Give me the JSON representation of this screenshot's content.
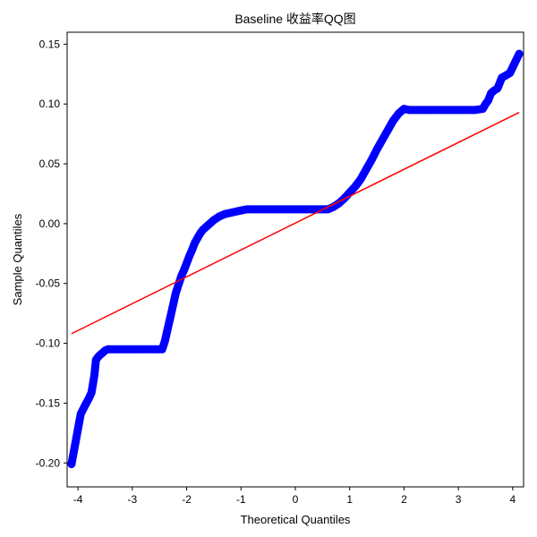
{
  "chart_data": {
    "type": "scatter",
    "title": "Baseline 收益率QQ图",
    "xlabel": "Theoretical Quantiles",
    "ylabel": "Sample Quantiles",
    "xlim": [
      -4.2,
      4.2
    ],
    "ylim": [
      -0.22,
      0.16
    ],
    "x_ticks": [
      -4,
      -3,
      -2,
      -1,
      0,
      1,
      2,
      3,
      4
    ],
    "x_tick_labels": [
      "-4",
      "-3",
      "-2",
      "-1",
      "0",
      "1",
      "2",
      "3",
      "4"
    ],
    "y_ticks": [
      -0.2,
      -0.15,
      -0.1,
      -0.05,
      0.0,
      0.05,
      0.1,
      0.15
    ],
    "y_tick_labels": [
      "-0.20",
      "-0.15",
      "-0.10",
      "-0.05",
      "0.00",
      "0.05",
      "0.10",
      "0.15"
    ],
    "grid": false,
    "legend": "none",
    "colors": {
      "points": "#0000ff",
      "reference_line": "#ff0000"
    },
    "series": [
      {
        "kind": "points",
        "x": [
          -4.12,
          -3.95,
          -3.87,
          -3.8,
          -3.75,
          -3.7,
          -3.67,
          -3.64,
          -3.6,
          -3.55,
          -3.5,
          -3.45,
          -3.4,
          -3.3,
          -3.2,
          -3.0,
          -2.8,
          -2.6,
          -2.45,
          -2.4,
          -2.35,
          -2.3,
          -2.25,
          -2.2,
          -2.15,
          -2.1,
          -2.05,
          -2.0,
          -1.95,
          -1.9,
          -1.85,
          -1.8,
          -1.75,
          -1.7,
          -1.6,
          -1.5,
          -1.4,
          -1.3,
          -1.2,
          -1.1,
          -1.0,
          -0.9,
          -0.8,
          -0.6,
          -0.4,
          -0.2,
          0.0,
          0.2,
          0.4,
          0.6,
          0.7,
          0.8,
          0.9,
          1.0,
          1.1,
          1.2,
          1.3,
          1.4,
          1.5,
          1.6,
          1.7,
          1.8,
          1.9,
          2.0,
          2.1,
          2.2,
          2.3,
          2.4,
          2.5,
          2.7,
          2.9,
          3.1,
          3.3,
          3.45,
          3.5,
          3.55,
          3.6,
          3.65,
          3.72,
          3.8,
          3.88,
          3.95,
          4.12
        ],
        "y": [
          -0.201,
          -0.159,
          -0.152,
          -0.146,
          -0.141,
          -0.127,
          -0.114,
          -0.112,
          -0.11,
          -0.108,
          -0.106,
          -0.105,
          -0.105,
          -0.105,
          -0.105,
          -0.105,
          -0.105,
          -0.105,
          -0.105,
          -0.098,
          -0.088,
          -0.078,
          -0.068,
          -0.058,
          -0.051,
          -0.044,
          -0.039,
          -0.033,
          -0.027,
          -0.022,
          -0.016,
          -0.012,
          -0.008,
          -0.005,
          -0.001,
          0.003,
          0.006,
          0.008,
          0.009,
          0.01,
          0.011,
          0.012,
          0.012,
          0.012,
          0.012,
          0.012,
          0.012,
          0.012,
          0.012,
          0.012,
          0.014,
          0.017,
          0.021,
          0.026,
          0.031,
          0.037,
          0.045,
          0.053,
          0.062,
          0.07,
          0.078,
          0.086,
          0.092,
          0.096,
          0.095,
          0.095,
          0.095,
          0.095,
          0.095,
          0.095,
          0.095,
          0.095,
          0.095,
          0.096,
          0.1,
          0.103,
          0.109,
          0.111,
          0.113,
          0.122,
          0.124,
          0.126,
          0.142
        ]
      },
      {
        "kind": "reference_line",
        "x": [
          -4.12,
          4.12
        ],
        "y": [
          -0.092,
          0.093
        ]
      }
    ]
  }
}
